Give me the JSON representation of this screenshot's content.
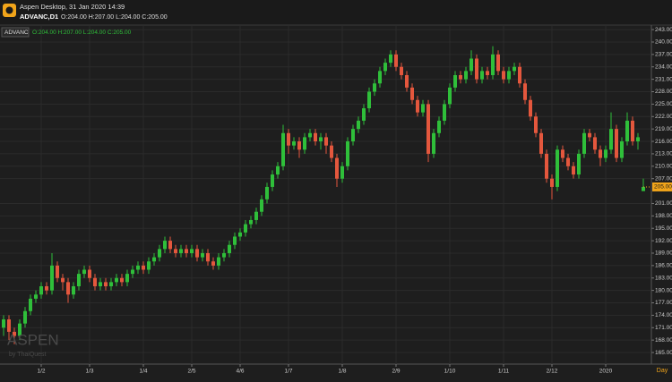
{
  "header": {
    "title": "Aspen Desktop, 31 Jan 2020 14:39",
    "symbol_line": "ADVANC,D1",
    "ohlc": "O:204.00 H:207.00 L:204.00 C:205.00"
  },
  "watermark": {
    "brand": "ASPEN",
    "by": "by ThaiQuest"
  },
  "chart_data": {
    "type": "candlestick",
    "symbol": "ADVANC",
    "xlabel": "Day",
    "up_color": "#2fbf3a",
    "down_color": "#e4573d",
    "grid": true,
    "last_price_label": "205.00",
    "categories": [
      null,
      null,
      null,
      null,
      null,
      null,
      null,
      "1/2",
      null,
      null,
      null,
      null,
      null,
      null,
      null,
      null,
      "1/3",
      null,
      null,
      null,
      null,
      null,
      null,
      null,
      null,
      null,
      "1/4",
      null,
      null,
      null,
      null,
      null,
      null,
      null,
      null,
      "2/5",
      null,
      null,
      null,
      null,
      null,
      null,
      null,
      null,
      "4/6",
      null,
      null,
      null,
      null,
      null,
      null,
      null,
      null,
      "1/7",
      null,
      null,
      null,
      null,
      null,
      null,
      null,
      null,
      null,
      "1/8",
      null,
      null,
      null,
      null,
      null,
      null,
      null,
      null,
      null,
      "2/9",
      null,
      null,
      null,
      null,
      null,
      null,
      null,
      null,
      null,
      "1/10",
      null,
      null,
      null,
      null,
      null,
      null,
      null,
      null,
      null,
      "1/11",
      null,
      null,
      null,
      null,
      null,
      null,
      null,
      null,
      "2/12",
      null,
      null,
      null,
      null,
      null,
      null,
      null,
      null,
      null,
      "2020",
      null,
      null,
      null,
      null,
      null,
      null,
      null
    ],
    "open": [
      171,
      173,
      170,
      169,
      172,
      175,
      178,
      179,
      181,
      180,
      186,
      183,
      182,
      179,
      181,
      184,
      185,
      183,
      181,
      182,
      181,
      182,
      183,
      182,
      184,
      185,
      186,
      185,
      187,
      188,
      190,
      192,
      190,
      189,
      190,
      189,
      190,
      188,
      189,
      187,
      186,
      188,
      189,
      191,
      193,
      194,
      196,
      197,
      199,
      202,
      205,
      208,
      210,
      218,
      215,
      216,
      214,
      217,
      218,
      216,
      217,
      215,
      212,
      207,
      210,
      216,
      219,
      221,
      224,
      228,
      230,
      233,
      235,
      237,
      234,
      232,
      229,
      226,
      223,
      225,
      213,
      218,
      221,
      225,
      229,
      232,
      231,
      233,
      236,
      231,
      233,
      232,
      237,
      233,
      231,
      233,
      234,
      230,
      226,
      222,
      218,
      213,
      207,
      205,
      214,
      212,
      210,
      208,
      213,
      218,
      217,
      214,
      212,
      214,
      219,
      212,
      216,
      221,
      216,
      204
    ],
    "high": [
      174,
      174,
      171,
      173,
      176,
      179,
      180,
      182,
      182,
      189,
      187,
      184,
      183,
      182,
      185,
      186,
      186,
      184,
      183,
      183,
      183,
      184,
      184,
      185,
      186,
      187,
      187,
      188,
      189,
      191,
      193,
      193,
      191,
      191,
      191,
      191,
      191,
      190,
      190,
      188,
      189,
      190,
      192,
      194,
      195,
      197,
      198,
      200,
      203,
      206,
      209,
      211,
      220,
      219,
      217,
      217,
      218,
      219,
      219,
      218,
      218,
      216,
      213,
      211,
      217,
      220,
      222,
      225,
      229,
      231,
      234,
      236,
      238,
      238,
      235,
      233,
      230,
      227,
      226,
      226,
      219,
      222,
      226,
      230,
      233,
      233,
      234,
      238,
      237,
      234,
      234,
      239,
      238,
      234,
      234,
      235,
      235,
      231,
      227,
      223,
      219,
      214,
      208,
      215,
      215,
      213,
      211,
      214,
      219,
      219,
      218,
      215,
      215,
      223,
      220,
      217,
      223,
      222,
      218,
      207
    ],
    "low": [
      169,
      168,
      167,
      168,
      171,
      174,
      177,
      178,
      179,
      179,
      182,
      180,
      177,
      178,
      180,
      183,
      182,
      180,
      180,
      180,
      180,
      181,
      181,
      181,
      183,
      184,
      184,
      184,
      186,
      187,
      189,
      189,
      188,
      188,
      188,
      188,
      187,
      187,
      186,
      185,
      185,
      187,
      188,
      190,
      192,
      193,
      195,
      196,
      198,
      201,
      204,
      207,
      209,
      213,
      214,
      212,
      213,
      216,
      215,
      214,
      213,
      211,
      205,
      206,
      209,
      215,
      218,
      220,
      223,
      227,
      229,
      232,
      234,
      233,
      231,
      228,
      225,
      222,
      222,
      211,
      212,
      217,
      220,
      224,
      228,
      230,
      230,
      232,
      230,
      230,
      231,
      231,
      232,
      230,
      230,
      232,
      229,
      225,
      221,
      217,
      212,
      206,
      202,
      204,
      211,
      209,
      207,
      207,
      212,
      216,
      213,
      210,
      211,
      213,
      211,
      211,
      215,
      215,
      214,
      204
    ],
    "close": [
      173,
      170,
      169,
      172,
      175,
      178,
      179,
      181,
      180,
      186,
      183,
      182,
      179,
      181,
      184,
      185,
      183,
      181,
      182,
      181,
      182,
      183,
      182,
      184,
      185,
      186,
      185,
      187,
      188,
      190,
      192,
      190,
      189,
      190,
      189,
      190,
      188,
      189,
      187,
      186,
      188,
      189,
      191,
      193,
      194,
      196,
      197,
      199,
      202,
      205,
      208,
      210,
      218,
      215,
      216,
      214,
      217,
      218,
      216,
      217,
      215,
      212,
      207,
      210,
      216,
      219,
      221,
      224,
      228,
      230,
      233,
      235,
      237,
      234,
      232,
      229,
      226,
      223,
      225,
      213,
      218,
      221,
      225,
      229,
      232,
      231,
      233,
      236,
      231,
      233,
      232,
      237,
      233,
      231,
      233,
      234,
      230,
      226,
      222,
      218,
      213,
      207,
      205,
      214,
      212,
      210,
      208,
      213,
      218,
      217,
      214,
      212,
      214,
      219,
      212,
      216,
      221,
      216,
      217,
      205
    ],
    "ylim": [
      162.2,
      244.1
    ],
    "yticks": [
      {
        "value": 243,
        "label": "243.00"
      },
      {
        "value": 240,
        "label": "240.00"
      },
      {
        "value": 237,
        "label": "237.00"
      },
      {
        "value": 234,
        "label": "234.00"
      },
      {
        "value": 231,
        "label": "231.00"
      },
      {
        "value": 228,
        "label": "228.00"
      },
      {
        "value": 225,
        "label": "225.00"
      },
      {
        "value": 222,
        "label": "222.00"
      },
      {
        "value": 219,
        "label": "219.00"
      },
      {
        "value": 216,
        "label": "216.00"
      },
      {
        "value": 213,
        "label": "213.00"
      },
      {
        "value": 210,
        "label": "210.00"
      },
      {
        "value": 207,
        "label": "207.00"
      },
      {
        "value": 201,
        "label": "201.00"
      },
      {
        "value": 198,
        "label": "198.00"
      },
      {
        "value": 195,
        "label": "195.00"
      },
      {
        "value": 192,
        "label": "192.00"
      },
      {
        "value": 189,
        "label": "189.00"
      },
      {
        "value": 186,
        "label": "186.00"
      },
      {
        "value": 183,
        "label": "183.00"
      },
      {
        "value": 180,
        "label": "180.00"
      },
      {
        "value": 177,
        "label": "177.00"
      },
      {
        "value": 174,
        "label": "174.00"
      },
      {
        "value": 171,
        "label": "171.00"
      },
      {
        "value": 168,
        "label": "168.00"
      },
      {
        "value": 165,
        "label": "165.00"
      }
    ]
  }
}
